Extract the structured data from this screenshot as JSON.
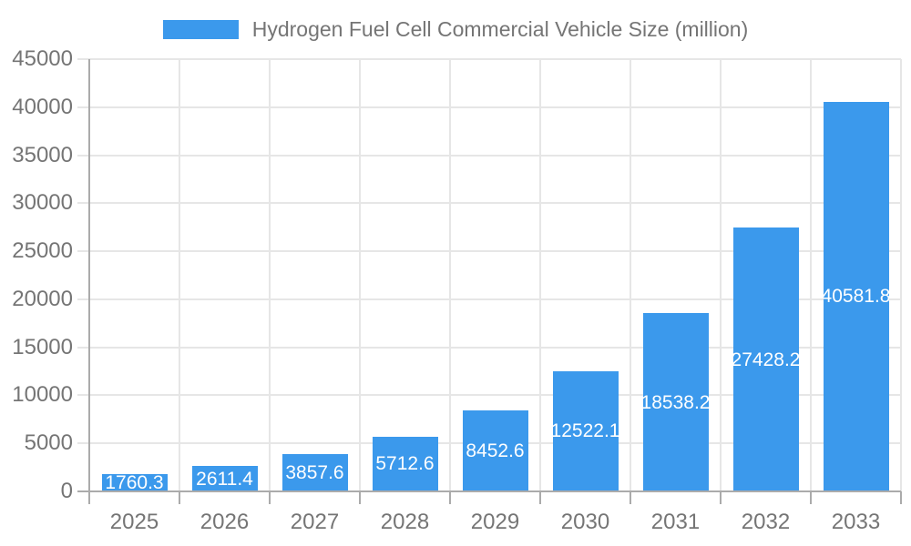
{
  "legend": {
    "label": "Hydrogen Fuel Cell Commercial Vehicle Size (million)"
  },
  "chart_data": {
    "type": "bar",
    "title": "Hydrogen Fuel Cell Commercial Vehicle Size (million)",
    "categories": [
      "2025",
      "2026",
      "2027",
      "2028",
      "2029",
      "2030",
      "2031",
      "2032",
      "2033"
    ],
    "series": [
      {
        "name": "Hydrogen Fuel Cell Commercial Vehicle Size (million)",
        "values": [
          1760.3,
          2611.4,
          3857.6,
          5712.6,
          8452.6,
          12522.1,
          18538.2,
          27428.2,
          40581.8
        ]
      }
    ],
    "bar_labels": [
      "1760.3",
      "2611.4",
      "3857.6",
      "5712.6",
      "8452.6",
      "12522.1",
      "18538.2",
      "27428.2",
      "40581.8"
    ],
    "xlabel": "",
    "ylabel": "",
    "ylim": [
      0,
      45000
    ],
    "ytick_step": 5000,
    "ytick_labels": [
      "0",
      "5000",
      "10000",
      "15000",
      "20000",
      "25000",
      "30000",
      "35000",
      "40000",
      "45000"
    ],
    "grid": true,
    "legend_position": "top",
    "colors": {
      "bar": "#3b99ec",
      "grid": "#e6e6e6",
      "axis": "#ababab",
      "text": "#757575",
      "bar_label": "#ffffff"
    }
  }
}
